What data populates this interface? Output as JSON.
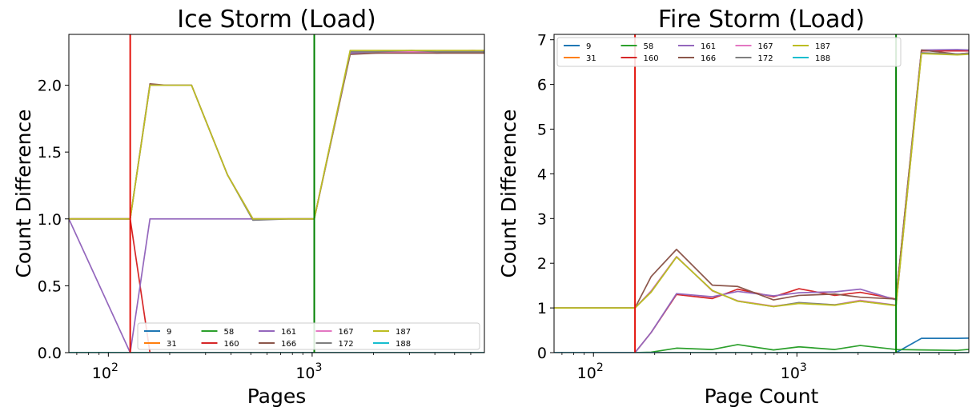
{
  "colors": {
    "9": "#1f77b4",
    "31": "#ff7f0e",
    "58": "#2ca02c",
    "160": "#d62728",
    "161": "#9467bd",
    "166": "#8c564b",
    "167": "#e377c2",
    "172": "#7f7f7f",
    "187": "#bcbd22",
    "188": "#17becf",
    "red_marker": "#e3120b",
    "green_marker": "#008000"
  },
  "chart_data": [
    {
      "type": "line",
      "title": "Ice Storm (Load)",
      "xlabel": "Pages",
      "ylabel": "Count Difference",
      "x_scale": "log",
      "xlim": [
        64,
        7000
      ],
      "ylim": [
        0,
        2.38
      ],
      "y_ticks": [
        0.0,
        0.5,
        1.0,
        1.5,
        2.0
      ],
      "y_tick_labels": [
        "0.0",
        "0.5",
        "1.0",
        "1.5",
        "2.0"
      ],
      "x_tick_labels": [
        {
          "base": "10",
          "exp": "2",
          "value": 100
        },
        {
          "base": "10",
          "exp": "3",
          "value": 1000
        }
      ],
      "vlines": [
        {
          "x": 128,
          "color": "red"
        },
        {
          "x": 1024,
          "color": "green"
        }
      ],
      "legend": {
        "position": "lower-right",
        "entries": [
          "9",
          "31",
          "58",
          "160",
          "161",
          "166",
          "167",
          "172",
          "187",
          "188"
        ]
      },
      "x": [
        64,
        128,
        160,
        192,
        256,
        384,
        512,
        768,
        1024,
        1536,
        2048,
        3072,
        4096,
        6144,
        8192
      ],
      "series": [
        {
          "name": "9",
          "values": [
            0,
            0,
            0,
            0,
            0,
            0,
            0,
            0,
            0,
            0,
            0,
            0,
            0,
            0,
            0
          ]
        },
        {
          "name": "31",
          "values": [
            0,
            0,
            0,
            0,
            0,
            0,
            0,
            0,
            0,
            0,
            0,
            0,
            0,
            0,
            0
          ]
        },
        {
          "name": "58",
          "values": [
            0,
            0,
            0,
            0,
            0,
            0,
            0,
            0,
            0,
            0,
            0,
            0,
            0,
            0,
            0
          ]
        },
        {
          "name": "160",
          "values": [
            1.0,
            1.0,
            0,
            0,
            0,
            0,
            0,
            0,
            0,
            0,
            0,
            0,
            0,
            0,
            0
          ]
        },
        {
          "name": "161",
          "values": [
            1.0,
            0,
            1.0,
            1.0,
            1.0,
            1.0,
            1.0,
            1.0,
            1.0,
            2.24,
            2.24,
            2.25,
            2.24,
            2.25,
            2.24
          ]
        },
        {
          "name": "166",
          "values": [
            1.0,
            1.0,
            2.01,
            2.0,
            2.0,
            1.33,
            1.0,
            1.0,
            1.0,
            2.23,
            2.24,
            2.24,
            2.24,
            2.24,
            2.24
          ]
        },
        {
          "name": "167",
          "values": [
            1.0,
            1.0,
            2.0,
            2.0,
            2.0,
            1.33,
            1.0,
            1.0,
            1.0,
            2.25,
            2.25,
            2.25,
            2.25,
            2.26,
            2.25
          ]
        },
        {
          "name": "172",
          "values": [
            1.0,
            1.0,
            2.0,
            2.0,
            2.0,
            1.33,
            0.99,
            1.0,
            1.0,
            2.25,
            2.25,
            2.26,
            2.25,
            2.25,
            2.25
          ]
        },
        {
          "name": "187",
          "values": [
            1.0,
            1.0,
            2.0,
            2.0,
            2.0,
            1.33,
            1.0,
            1.0,
            1.0,
            2.26,
            2.26,
            2.26,
            2.26,
            2.26,
            2.26
          ]
        },
        {
          "name": "188",
          "values": [
            0,
            0,
            0,
            0,
            0,
            0,
            0,
            0,
            0,
            0,
            0,
            0,
            0,
            0,
            0
          ]
        }
      ]
    },
    {
      "type": "line",
      "title": "Fire Storm (Load)",
      "xlabel": "Page Count",
      "ylabel": "Count Difference",
      "x_scale": "log",
      "xlim": [
        64,
        7000
      ],
      "ylim": [
        0,
        7.12
      ],
      "y_ticks": [
        0,
        1,
        2,
        3,
        4,
        5,
        6,
        7
      ],
      "y_tick_labels": [
        "0",
        "1",
        "2",
        "3",
        "4",
        "5",
        "6",
        "7"
      ],
      "x_tick_labels": [
        {
          "base": "10",
          "exp": "2",
          "value": 100
        },
        {
          "base": "10",
          "exp": "3",
          "value": 1000
        }
      ],
      "vlines": [
        {
          "x": 160,
          "color": "red"
        },
        {
          "x": 3072,
          "color": "green"
        }
      ],
      "legend": {
        "position": "upper-left",
        "entries": [
          "9",
          "31",
          "58",
          "160",
          "161",
          "166",
          "167",
          "172",
          "187",
          "188"
        ]
      },
      "x": [
        64,
        128,
        160,
        192,
        256,
        384,
        512,
        768,
        1024,
        1536,
        2048,
        3072,
        4096,
        6144,
        8192
      ],
      "series": [
        {
          "name": "9",
          "values": [
            0,
            0,
            0,
            0,
            0,
            0,
            0,
            0,
            0,
            0,
            0,
            0,
            0.32,
            0.32,
            0.33
          ]
        },
        {
          "name": "31",
          "values": [
            0,
            0,
            0,
            0,
            0,
            0,
            0,
            0,
            0,
            0,
            0,
            0,
            0,
            0,
            0
          ]
        },
        {
          "name": "58",
          "values": [
            0,
            0,
            0,
            0.01,
            0.1,
            0.07,
            0.18,
            0.06,
            0.13,
            0.07,
            0.16,
            0.07,
            0.06,
            0.05,
            0.1
          ]
        },
        {
          "name": "160",
          "values": [
            0,
            0,
            0,
            0.45,
            1.3,
            1.21,
            1.42,
            1.25,
            1.43,
            1.28,
            1.35,
            1.2,
            6.75,
            6.75,
            6.75
          ]
        },
        {
          "name": "161",
          "values": [
            0,
            0,
            0,
            0.45,
            1.32,
            1.25,
            1.37,
            1.27,
            1.34,
            1.36,
            1.42,
            1.18,
            6.77,
            6.78,
            6.76
          ]
        },
        {
          "name": "166",
          "values": [
            1.0,
            1.0,
            1.0,
            1.7,
            2.31,
            1.51,
            1.48,
            1.18,
            1.28,
            1.31,
            1.24,
            1.2,
            6.77,
            6.68,
            6.73
          ]
        },
        {
          "name": "167",
          "values": [
            1.0,
            1.0,
            1.0,
            1.38,
            2.15,
            1.38,
            1.16,
            1.04,
            1.11,
            1.07,
            1.17,
            1.06,
            6.7,
            6.68,
            6.72
          ]
        },
        {
          "name": "172",
          "values": [
            1.0,
            1.0,
            1.0,
            1.36,
            2.14,
            1.39,
            1.15,
            1.03,
            1.12,
            1.07,
            1.15,
            1.06,
            6.71,
            6.68,
            6.71
          ]
        },
        {
          "name": "187",
          "values": [
            1.0,
            1.0,
            1.0,
            1.35,
            2.14,
            1.39,
            1.15,
            1.03,
            1.1,
            1.06,
            1.15,
            1.05,
            6.69,
            6.66,
            6.69
          ]
        },
        {
          "name": "188",
          "values": [
            0,
            0,
            0,
            0,
            0,
            0,
            0,
            0,
            0,
            0,
            0,
            0,
            0,
            0,
            0
          ]
        }
      ]
    }
  ]
}
